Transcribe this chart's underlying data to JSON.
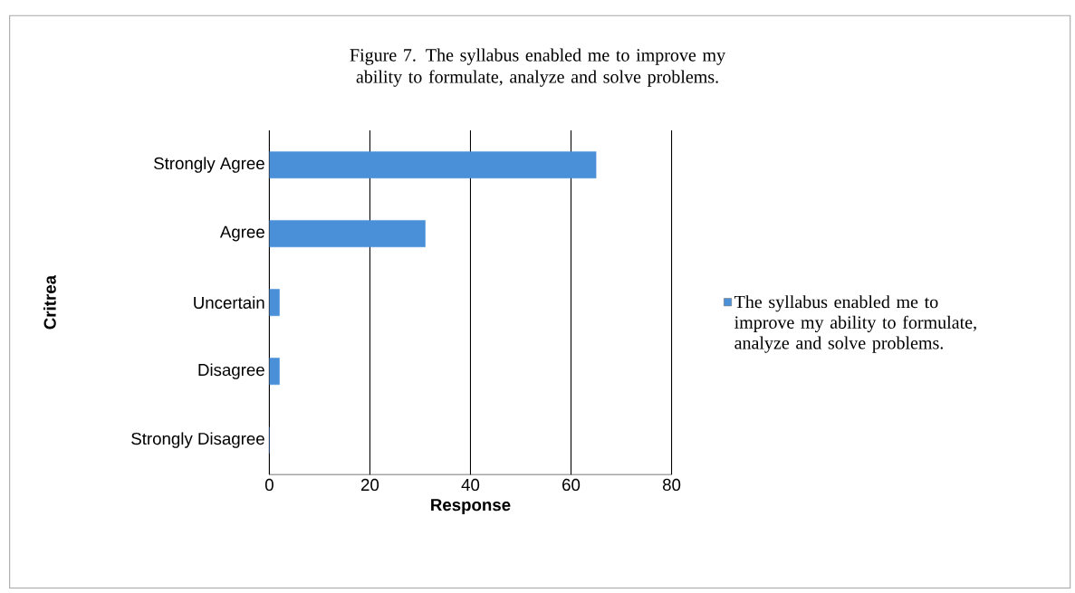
{
  "chart_data": {
    "type": "bar",
    "orientation": "horizontal",
    "title": "Figure 7. The syllabus enabled me to improve my ability to formulate, analyze and solve problems.",
    "xlabel": "Response",
    "ylabel": "Critrea",
    "categories": [
      "Strongly Agree",
      "Agree",
      "Uncertain",
      "Disagree",
      "Strongly Disagree"
    ],
    "series": [
      {
        "name": "The syllabus enabled me to improve my ability to formulate, analyze and solve problems.",
        "color": "#4a90d9",
        "values": [
          65,
          31,
          2,
          2,
          0
        ]
      }
    ],
    "xlim": [
      0,
      80
    ],
    "xticks": [
      0,
      20,
      40,
      60,
      80
    ],
    "grid": "x",
    "legend": "right"
  }
}
